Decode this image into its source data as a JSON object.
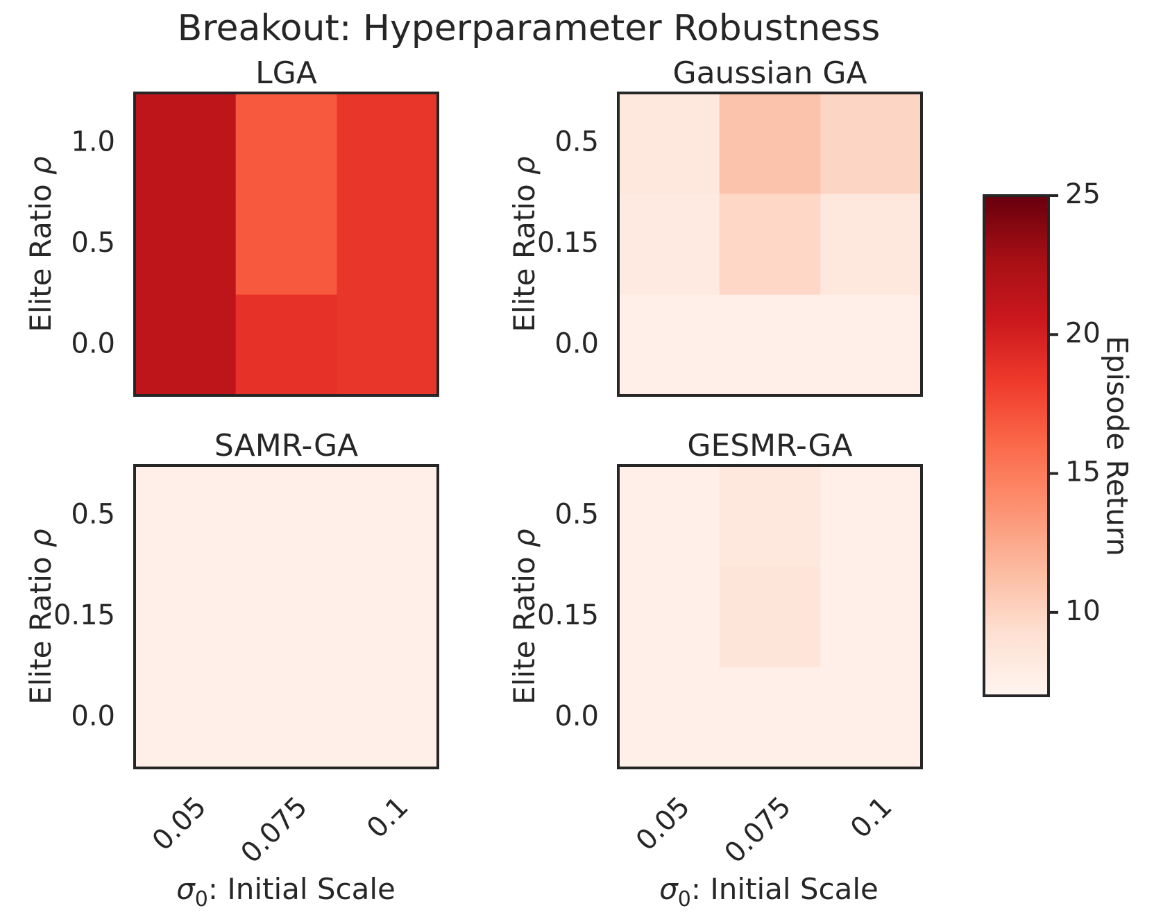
{
  "chart_data": {
    "type": "heatmap",
    "title": "Breakout: Hyperparameter Robustness",
    "colormap": "Reds",
    "colorbar": {
      "label": "Episode Return",
      "min": 7,
      "max": 25,
      "ticks": [
        10,
        15,
        20,
        25
      ]
    },
    "xlabel_symbol": "σ",
    "xlabel_subscript": "0",
    "xlabel_rest": ": Initial Scale",
    "ylabel_text": "Elite Ratio ",
    "ylabel_symbol": "ρ",
    "panels": [
      {
        "title": "LGA",
        "x_ticks": [
          "0.05",
          "0.075",
          "0.1"
        ],
        "y_ticks": [
          "1.0",
          "0.5",
          "0.0"
        ],
        "values": [
          [
            21.3,
            16.8,
            18.6
          ],
          [
            21.3,
            16.8,
            18.6
          ],
          [
            21.3,
            18.9,
            18.6
          ]
        ]
      },
      {
        "title": "Gaussian GA",
        "x_ticks": [
          "0.05",
          "0.075",
          "0.1"
        ],
        "y_ticks": [
          "0.5",
          "0.15",
          "0.0"
        ],
        "values": [
          [
            8.4,
            11.0,
            9.9
          ],
          [
            8.2,
            9.8,
            8.4
          ],
          [
            7.6,
            7.6,
            7.6
          ]
        ]
      },
      {
        "title": "SAMR-GA",
        "x_ticks": [
          "0.05",
          "0.075",
          "0.1"
        ],
        "y_ticks": [
          "0.5",
          "0.15",
          "0.0"
        ],
        "values": [
          [
            7.6,
            7.6,
            7.6
          ],
          [
            7.6,
            7.6,
            7.6
          ],
          [
            7.6,
            7.6,
            7.6
          ]
        ]
      },
      {
        "title": "GESMR-GA",
        "x_ticks": [
          "0.05",
          "0.075",
          "0.1"
        ],
        "y_ticks": [
          "0.5",
          "0.15",
          "0.0"
        ],
        "values": [
          [
            7.6,
            8.4,
            7.6
          ],
          [
            7.6,
            8.7,
            7.6
          ],
          [
            7.6,
            7.6,
            7.6
          ]
        ]
      }
    ]
  }
}
